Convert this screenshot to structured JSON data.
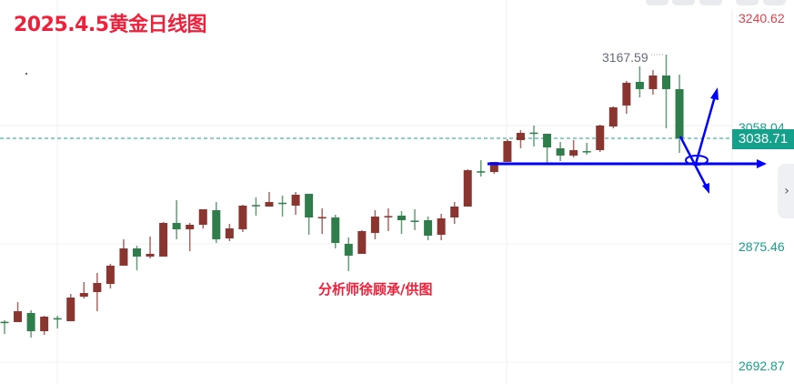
{
  "title": "2025.4.5黄金日线图",
  "credit": "分析师徐顾承/供图",
  "colors": {
    "up": "#8b3530",
    "down": "#2e7d4a",
    "accent": "#14a08a",
    "title": "#f0203a",
    "annotation": "#0000ff"
  },
  "price_axis": {
    "labels": [
      {
        "text": "3240.62",
        "color": "#e0404a"
      },
      {
        "text": "3058.04",
        "color": "#14a08a"
      },
      {
        "text": "2875.46",
        "color": "#14a08a"
      },
      {
        "text": "2692.87",
        "color": "#14a08a"
      }
    ],
    "current_price": "3038.71"
  },
  "high_label": "3167.59",
  "collapse_icon": "chevron-right-icon",
  "chart_data": {
    "type": "candlestick",
    "title": "2025.4.5黄金日线图",
    "ylim": [
      2660.4,
      3251.65
    ],
    "grid": true,
    "current_price": 3038.71,
    "max_marker": 3167.59,
    "ohlc": [
      [
        2756.2,
        2758.5,
        2737.5,
        2755.0
      ],
      [
        2755.7,
        2786.5,
        2755.7,
        2772.5
      ],
      [
        2769.7,
        2773.9,
        2731.9,
        2741.7
      ],
      [
        2741.7,
        2765.5,
        2736.1,
        2764.1
      ],
      [
        2761.8,
        2765.5,
        2745.9,
        2760.2
      ],
      [
        2757.1,
        2799.1,
        2757.1,
        2793.5
      ],
      [
        2794.9,
        2817.3,
        2792.1,
        2800.5
      ],
      [
        2801.9,
        2831.4,
        2772.5,
        2815.9
      ],
      [
        2814.5,
        2845.4,
        2807.5,
        2842.6
      ],
      [
        2842.6,
        2883.2,
        2842.6,
        2869.2
      ],
      [
        2869.2,
        2873.4,
        2835.6,
        2856.6
      ],
      [
        2856.6,
        2887.4,
        2853.8,
        2860.8
      ],
      [
        2856.6,
        2909.8,
        2856.6,
        2908.4
      ],
      [
        2908.4,
        2943.4,
        2883.2,
        2898.6
      ],
      [
        2898.6,
        2908.4,
        2864.9,
        2905.6
      ],
      [
        2905.6,
        2929.4,
        2900.0,
        2929.4
      ],
      [
        2928.0,
        2940.6,
        2877.6,
        2883.2
      ],
      [
        2884.6,
        2907.0,
        2880.4,
        2900.0
      ],
      [
        2898.6,
        2936.4,
        2894.4,
        2935.0
      ],
      [
        2936.0,
        2947.6,
        2919.6,
        2935.0
      ],
      [
        2933.6,
        2956.0,
        2933.6,
        2940.6
      ],
      [
        2939.5,
        2950.4,
        2918.2,
        2938.0
      ],
      [
        2935.0,
        2956.0,
        2921.0,
        2951.8
      ],
      [
        2953.2,
        2953.2,
        2890.2,
        2916.8
      ],
      [
        2916.0,
        2930.8,
        2891.6,
        2917.5
      ],
      [
        2916.8,
        2921.0,
        2869.2,
        2877.6
      ],
      [
        2876.2,
        2886.0,
        2834.2,
        2858.0
      ],
      [
        2860.8,
        2897.2,
        2860.8,
        2895.8
      ],
      [
        2893.0,
        2928.0,
        2883.2,
        2918.2
      ],
      [
        2917.5,
        2930.8,
        2895.8,
        2919.0
      ],
      [
        2919.6,
        2926.6,
        2891.6,
        2912.6
      ],
      [
        2912.0,
        2929.4,
        2897.2,
        2910.5
      ],
      [
        2912.6,
        2918.2,
        2881.8,
        2888.8
      ],
      [
        2890.2,
        2922.4,
        2881.8,
        2915.4
      ],
      [
        2916.8,
        2940.6,
        2907.0,
        2933.6
      ],
      [
        2933.6,
        2991.0,
        2933.6,
        2989.6
      ],
      [
        2988.0,
        3005.1,
        2979.8,
        2986.5
      ],
      [
        2986.8,
        3002.3,
        2984.0,
        3002.3
      ],
      [
        3002.3,
        3037.3,
        3002.3,
        3034.5
      ],
      [
        3035.9,
        3051.3,
        3023.3,
        3047.1
      ],
      [
        3047.5,
        3058.3,
        3026.1,
        3046.0
      ],
      [
        3045.7,
        3045.7,
        3000.9,
        3024.7
      ],
      [
        3023.3,
        3033.1,
        3003.7,
        3012.1
      ],
      [
        3012.1,
        3035.9,
        3009.3,
        3020.5
      ],
      [
        3019.0,
        3031.7,
        3013.5,
        3017.5
      ],
      [
        3020.5,
        3059.7,
        3017.7,
        3058.3
      ],
      [
        3056.9,
        3087.7,
        3054.1,
        3086.4
      ],
      [
        3089.2,
        3127.0,
        3076.5,
        3124.2
      ],
      [
        3125.6,
        3149.4,
        3101.7,
        3114.4
      ],
      [
        3114.4,
        3143.8,
        3105.9,
        3135.4
      ],
      [
        3135.4,
        3167.59,
        3054.1,
        3114.4
      ],
      [
        3114.4,
        3136.8,
        3016.3,
        3038.71
      ]
    ]
  }
}
